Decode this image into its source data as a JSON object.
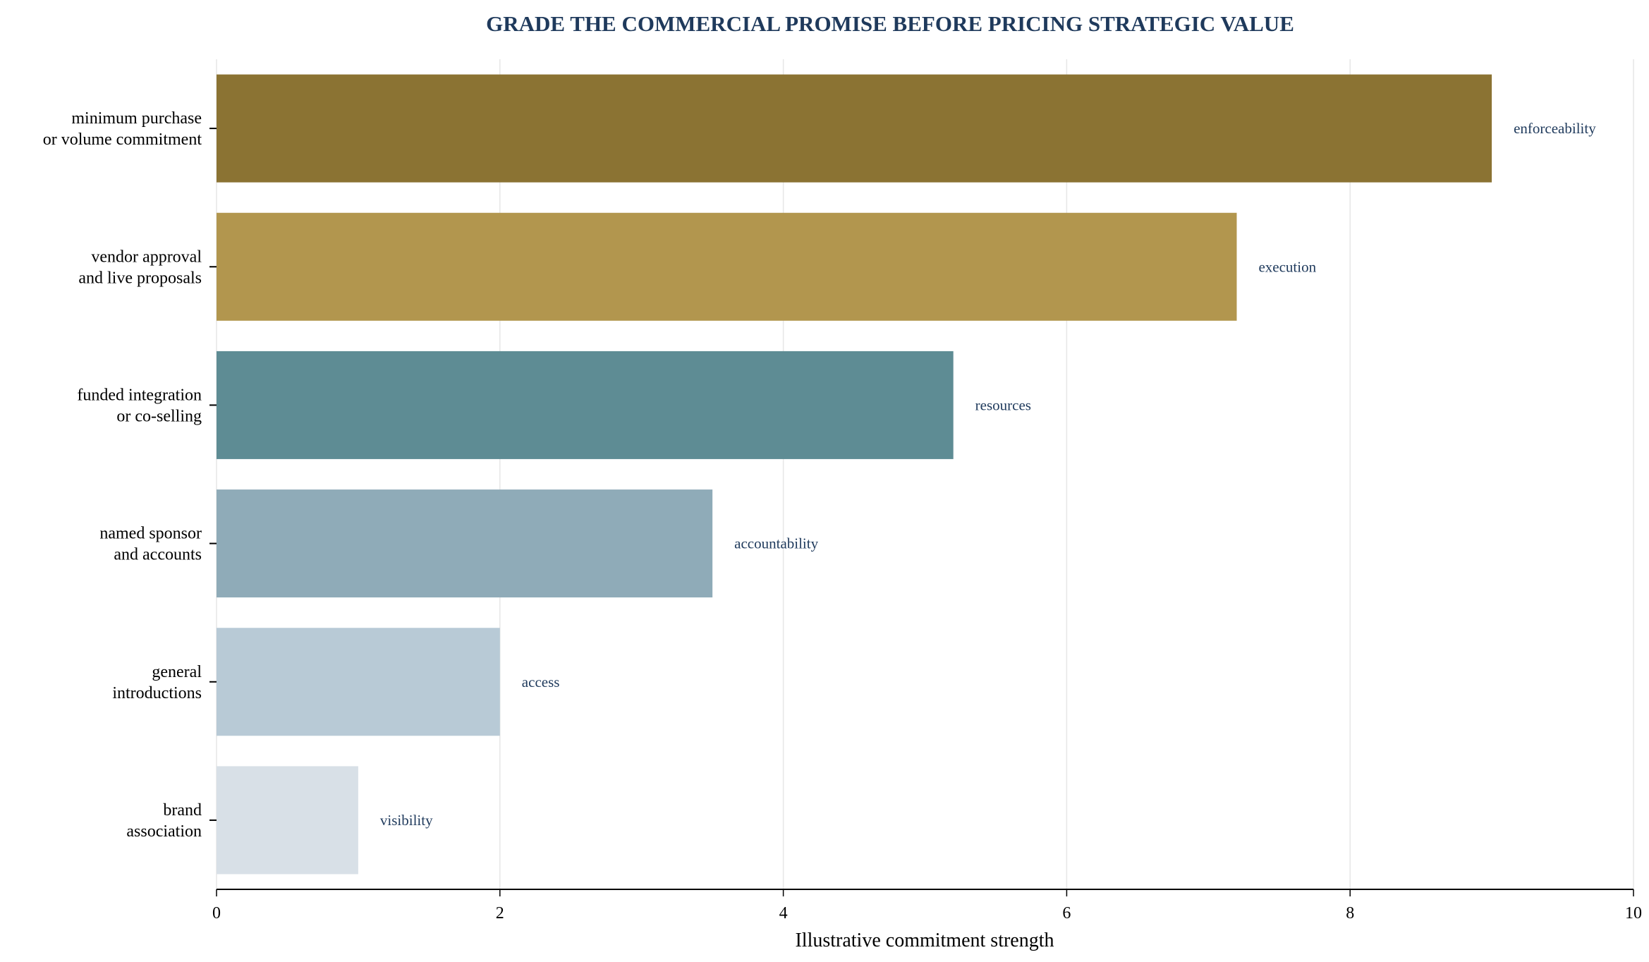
{
  "chart_data": {
    "type": "bar",
    "orientation": "horizontal",
    "title": "GRADE THE COMMERCIAL PROMISE BEFORE PRICING STRATEGIC VALUE",
    "xlabel": "Illustrative commitment strength",
    "ylabel": "",
    "xlim": [
      0,
      10
    ],
    "xticks": [
      0,
      2,
      4,
      6,
      8,
      10
    ],
    "grid": "vertical",
    "categories": [
      [
        "minimum purchase",
        "or volume commitment"
      ],
      [
        "vendor approval",
        "and live proposals"
      ],
      [
        "funded integration",
        "or co-selling"
      ],
      [
        "named sponsor",
        "and accounts"
      ],
      [
        "general",
        "introductions"
      ],
      [
        "brand",
        "association"
      ]
    ],
    "values": [
      9.0,
      7.2,
      5.2,
      3.5,
      2.0,
      1.0
    ],
    "annotations": [
      "enforceability",
      "execution",
      "resources",
      "accountability",
      "access",
      "visibility"
    ],
    "colors": [
      "#8b7333",
      "#b2964e",
      "#5e8c94",
      "#8fabb8",
      "#b8cad6",
      "#d8e0e7"
    ]
  }
}
